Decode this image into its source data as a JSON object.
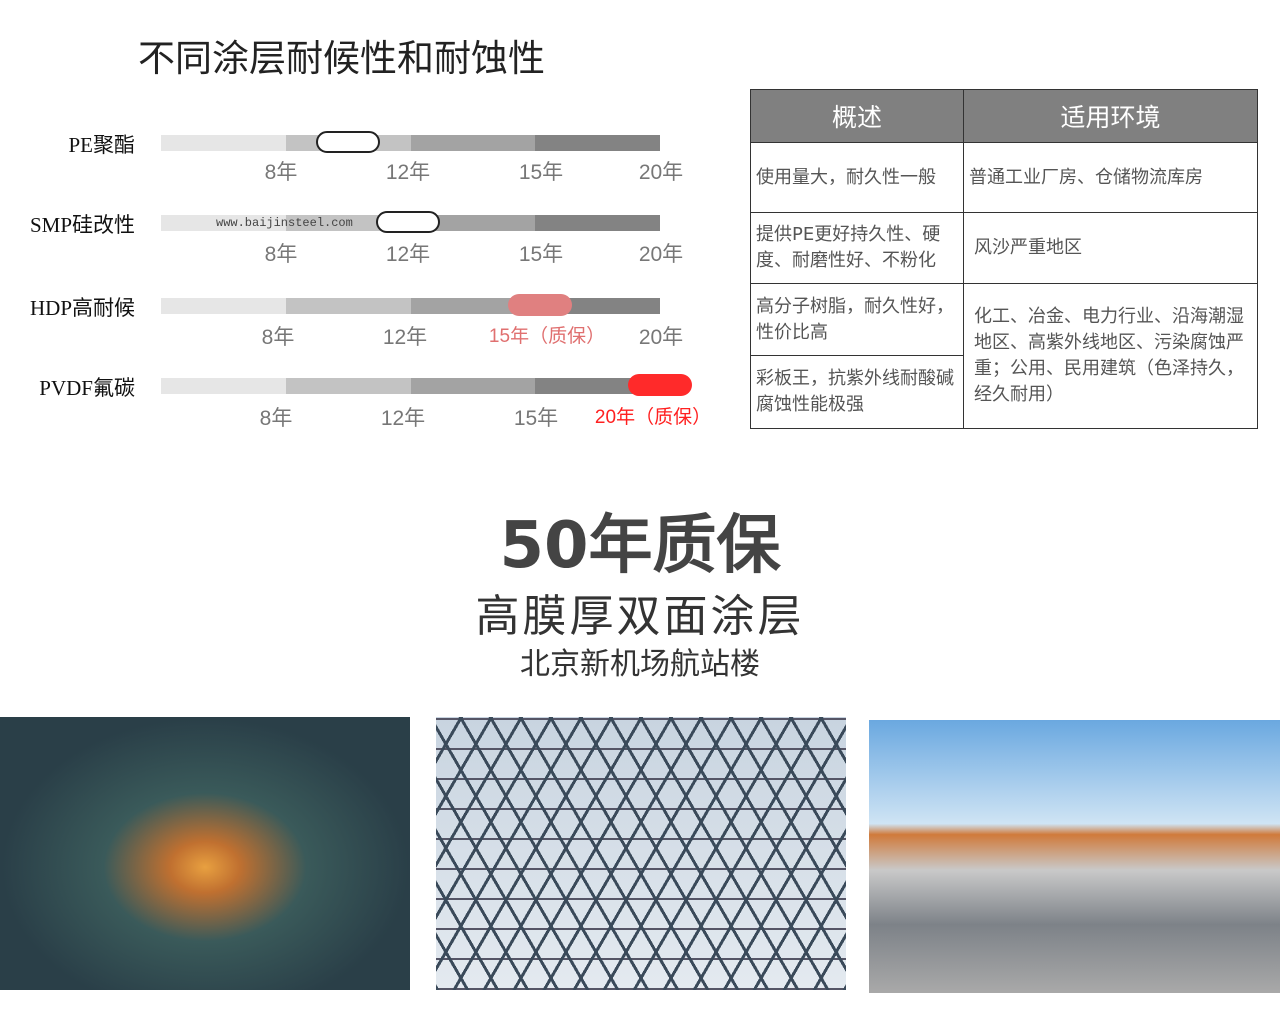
{
  "title": "不同涂层耐候性和耐蚀性",
  "watermark": "www.baijinsteel.com",
  "chart_data": {
    "type": "bar",
    "categories": [
      "PE聚酯",
      "SMP硅改性",
      "HDP高耐候",
      "PVDF氟碳"
    ],
    "ticks": [
      "8年",
      "12年",
      "15年",
      "20年"
    ],
    "series": [
      {
        "label": "PE聚酯",
        "marker_years": "8-12年",
        "marker_color": "#ffffff",
        "tick_labels": [
          "8年",
          "12年",
          "15年",
          "20年"
        ]
      },
      {
        "label": "SMP硅改性",
        "marker_years": "12年",
        "marker_color": "#ffffff",
        "tick_labels": [
          "8年",
          "12年",
          "15年",
          "20年"
        ]
      },
      {
        "label": "HDP高耐候",
        "marker_years": "15年",
        "marker_color": "#e08080",
        "tick_labels": [
          "8年",
          "12年",
          "15年（质保）",
          "20年"
        ]
      },
      {
        "label": "PVDF氟碳",
        "marker_years": "20年",
        "marker_color": "#ff2a2a",
        "tick_labels": [
          "8年",
          "12年",
          "15年",
          "20年（质保）"
        ]
      }
    ]
  },
  "table": {
    "headers": [
      "概述",
      "适用环境"
    ],
    "rows": [
      {
        "desc": "使用量大，耐久性一般",
        "env": "普通工业厂房、仓储物流库房"
      },
      {
        "desc": "提供PE更好持久性、硬度、耐磨性好、不粉化",
        "env": "风沙严重地区"
      },
      {
        "desc": "高分子树脂，耐久性好，性价比高",
        "env": "化工、冶金、电力行业、沿海潮湿地区、高紫外线地区、污染腐蚀严重；公用、民用建筑（色泽持久，经久耐用）"
      },
      {
        "desc": "彩板王，抗紫外线耐酸碱腐蚀性能极强"
      }
    ]
  },
  "headline": "50年质保",
  "subheadline": "高膜厚双面涂层",
  "caption": "北京新机场航站楼"
}
